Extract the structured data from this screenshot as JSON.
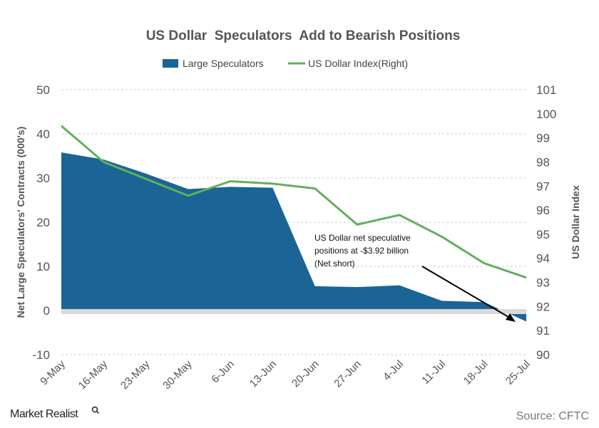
{
  "chart_data": {
    "type": "area",
    "title": "US Dollar  Speculators  Add to Bearish Positions",
    "categories": [
      "9-May",
      "16-May",
      "23-May",
      "30-May",
      "6-Jun",
      "13-Jun",
      "20-Jun",
      "27-Jun",
      "4-Jul",
      "11-Jul",
      "18-Jul",
      "25-Jul"
    ],
    "series": [
      {
        "name": "Large Speculators",
        "type": "area",
        "axis": "left",
        "color": "#1a6496",
        "values": [
          35.8,
          34.2,
          31.0,
          27.5,
          28.0,
          27.8,
          5.5,
          5.3,
          5.7,
          2.2,
          1.9,
          -2.5
        ]
      },
      {
        "name": "US Dollar Index(Right)",
        "type": "line",
        "axis": "right",
        "color": "#62b05a",
        "values": [
          99.5,
          98.0,
          97.3,
          96.6,
          97.2,
          97.1,
          96.9,
          95.4,
          95.8,
          94.9,
          93.8,
          93.2
        ]
      }
    ],
    "ylabel": "Net Large Speculators' Contracts (000's)",
    "ylabel_right": "US Dollar Index",
    "ylim": [
      -10,
      50
    ],
    "yticks": [
      -10,
      0,
      10,
      20,
      30,
      40,
      50
    ],
    "ylim_right": [
      90,
      101
    ],
    "yticks_right": [
      90,
      91,
      92,
      93,
      94,
      95,
      96,
      97,
      98,
      99,
      100,
      101
    ],
    "grid": true,
    "legend_position": "top-center",
    "annotation": {
      "lines": [
        "US Dollar net speculative",
        "positions at -$3.92 billion",
        "(Net short)"
      ]
    }
  },
  "footer": {
    "brand": "Market Realist",
    "source": "Source: CFTC"
  }
}
